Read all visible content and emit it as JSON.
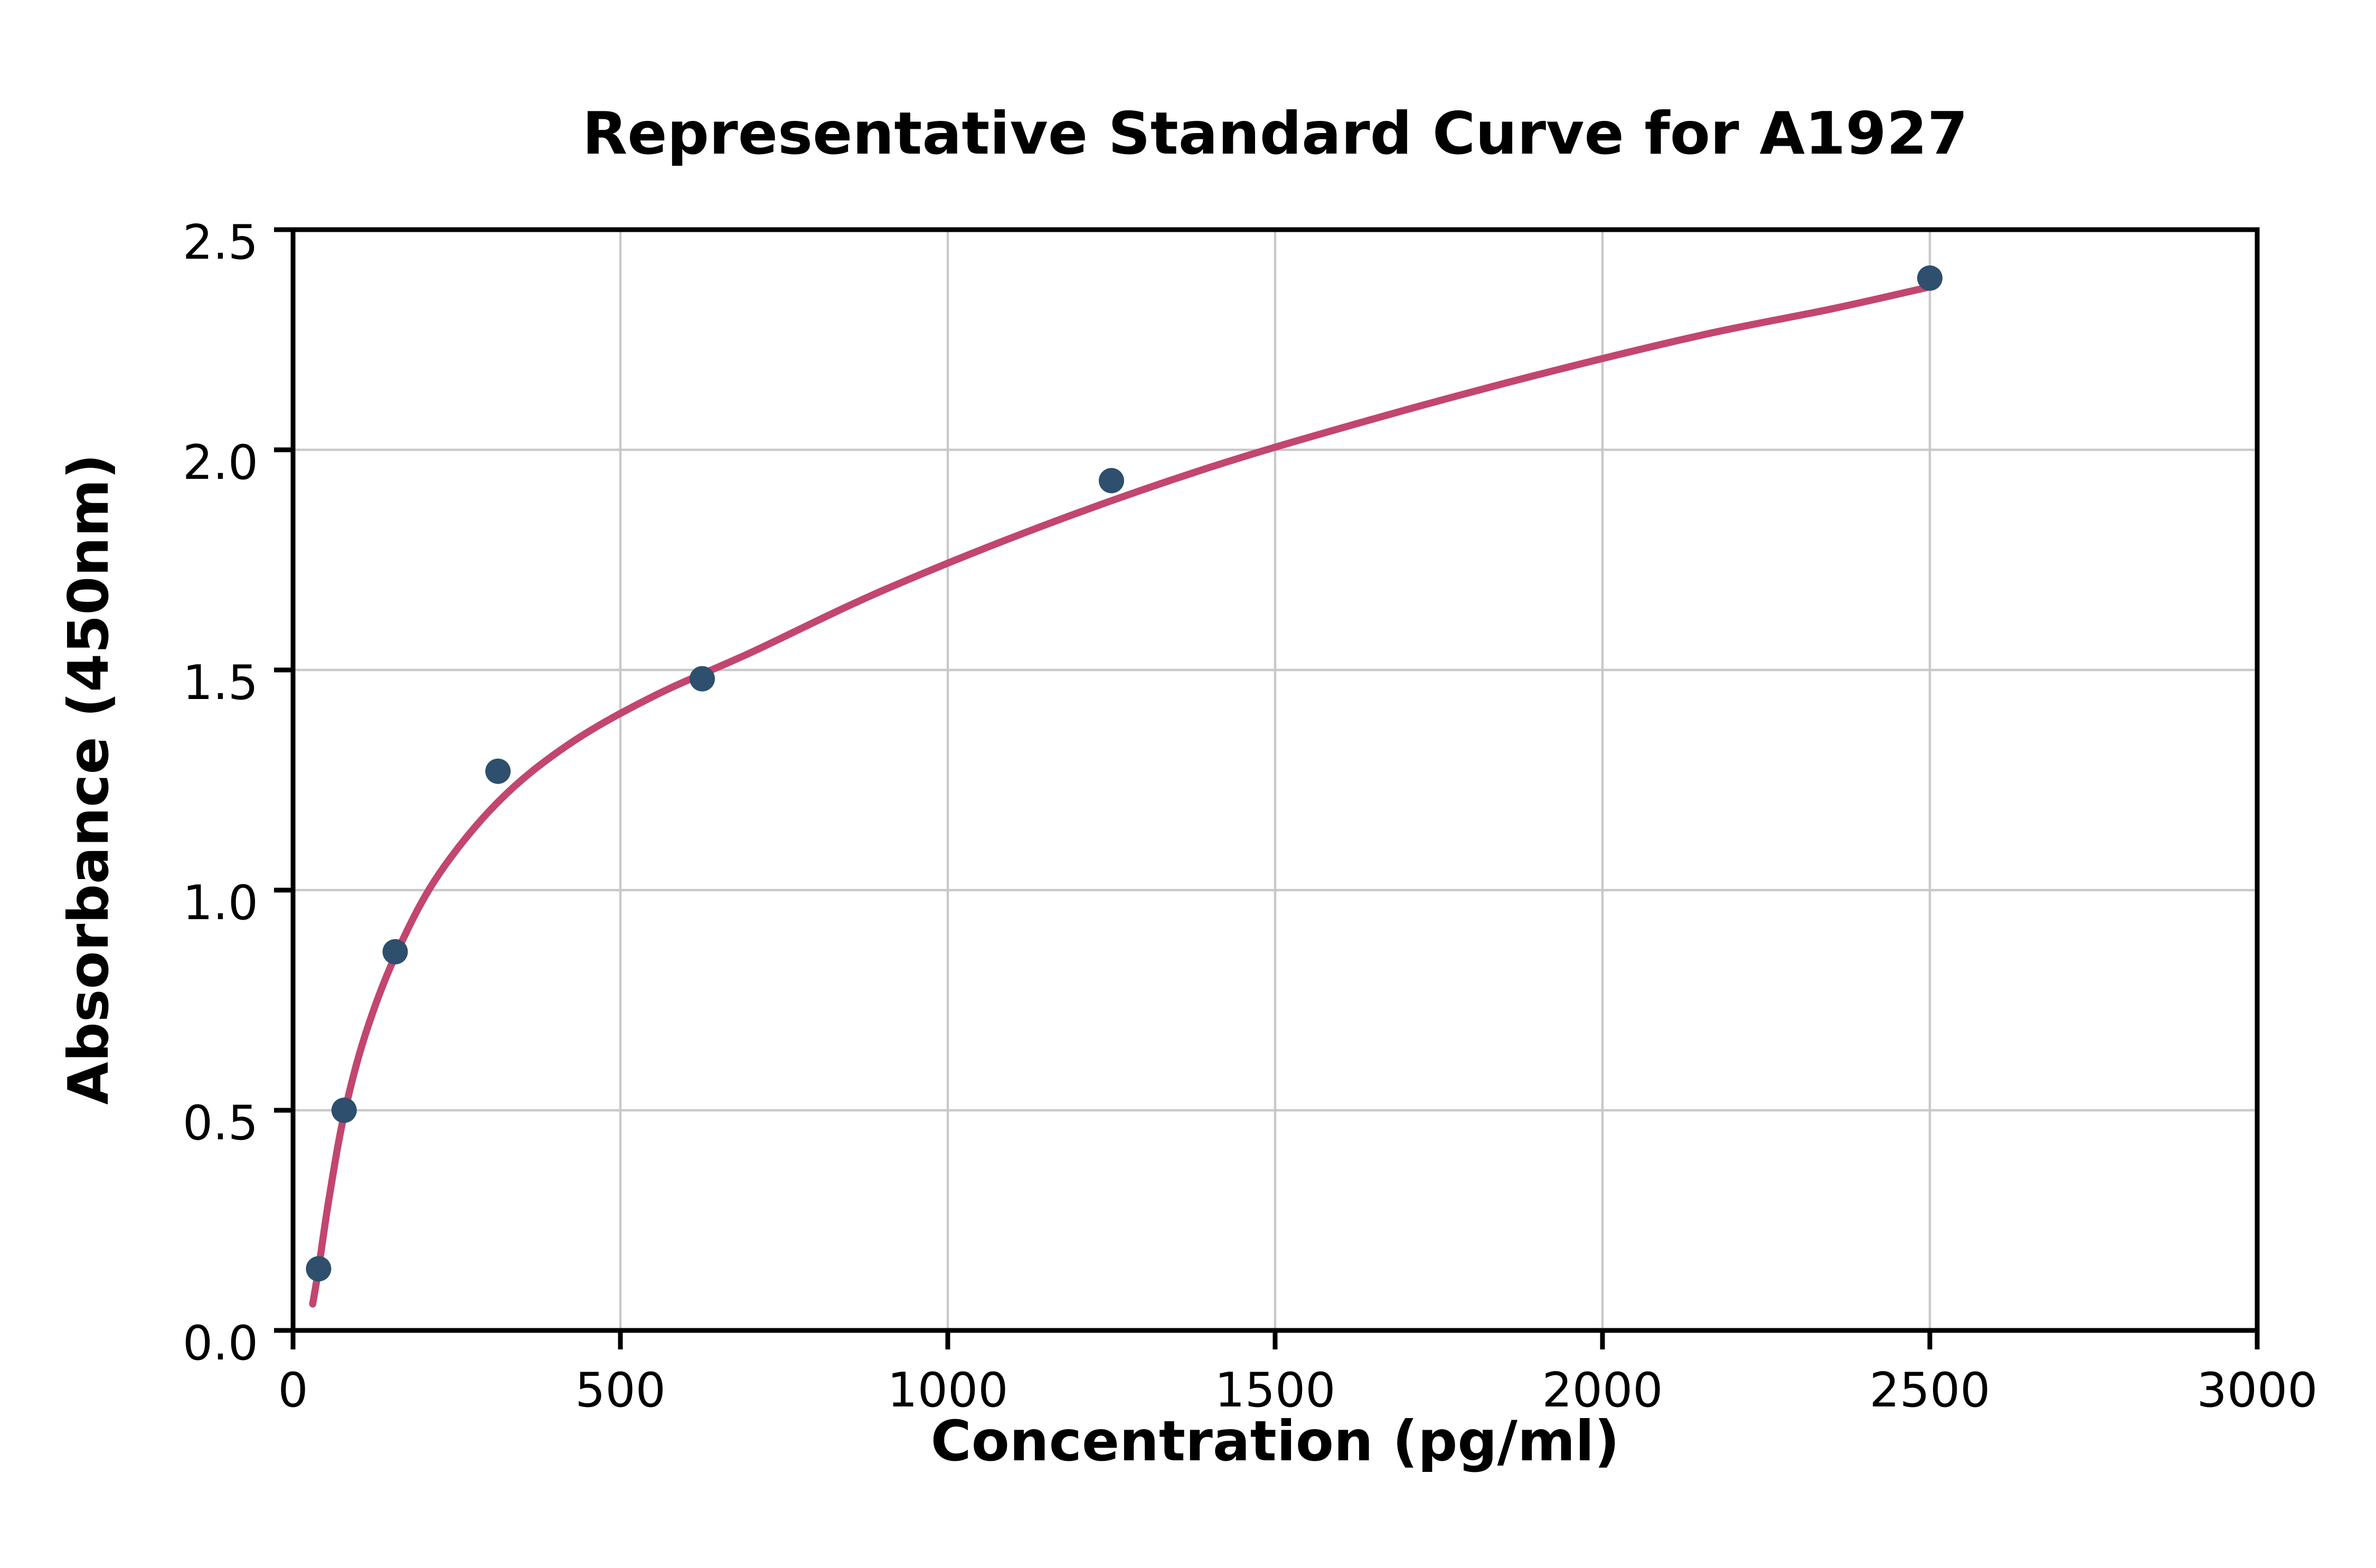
{
  "colors": {
    "background": "#ffffff",
    "point_color": "#2e4f6d",
    "curve_color": "#c2466e",
    "grid_color": "#c9c9c9",
    "axis_color": "#000000"
  },
  "chart_data": {
    "type": "scatter",
    "title": "Representative Standard Curve for A1927",
    "xlabel": "Concentration (pg/ml)",
    "ylabel": "Absorbance (450nm)",
    "xlim": [
      0,
      3000
    ],
    "ylim": [
      0,
      2.5
    ],
    "grid": true,
    "legend": "none",
    "x_ticks": [
      0,
      500,
      1000,
      1500,
      2000,
      2500,
      3000
    ],
    "x_tick_labels": [
      "0",
      "500",
      "1000",
      "1500",
      "2000",
      "2500",
      "3000"
    ],
    "y_ticks": [
      0,
      0.5,
      1.0,
      1.5,
      2.0,
      2.5
    ],
    "y_tick_labels": [
      "0.0",
      "0.5",
      "1.0",
      "1.5",
      "2.0",
      "2.5"
    ],
    "series": [
      {
        "name": "4pl-fit-curve",
        "type": "line",
        "color": "#c2466e",
        "points": [
          {
            "x": 30,
            "y": 0.06
          },
          {
            "x": 39,
            "y": 0.14
          },
          {
            "x": 55,
            "y": 0.3
          },
          {
            "x": 78,
            "y": 0.49
          },
          {
            "x": 110,
            "y": 0.67
          },
          {
            "x": 156,
            "y": 0.85
          },
          {
            "x": 220,
            "y": 1.03
          },
          {
            "x": 313,
            "y": 1.2
          },
          {
            "x": 420,
            "y": 1.33
          },
          {
            "x": 550,
            "y": 1.44
          },
          {
            "x": 700,
            "y": 1.54
          },
          {
            "x": 900,
            "y": 1.68
          },
          {
            "x": 1150,
            "y": 1.83
          },
          {
            "x": 1400,
            "y": 1.96
          },
          {
            "x": 1650,
            "y": 2.07
          },
          {
            "x": 1900,
            "y": 2.17
          },
          {
            "x": 2150,
            "y": 2.26
          },
          {
            "x": 2350,
            "y": 2.32
          },
          {
            "x": 2500,
            "y": 2.37
          }
        ]
      },
      {
        "name": "standard-points",
        "type": "scatter",
        "color": "#2e4f6d",
        "marker_radius": 8,
        "points": [
          {
            "x": 39,
            "y": 0.14
          },
          {
            "x": 78,
            "y": 0.5
          },
          {
            "x": 156,
            "y": 0.86
          },
          {
            "x": 313,
            "y": 1.27
          },
          {
            "x": 625,
            "y": 1.48
          },
          {
            "x": 1250,
            "y": 1.93
          },
          {
            "x": 2500,
            "y": 2.39
          }
        ]
      }
    ]
  }
}
